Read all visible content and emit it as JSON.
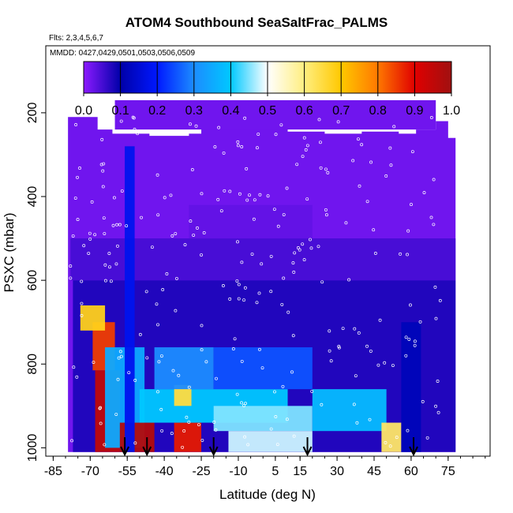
{
  "title": "ATOM4 Southbound SeaSaltFrac_PALMS",
  "flights_label": "Flts: 2,3,4,5,6,7",
  "mmdd_label": "MMDD: 0427,0429,0501,0503,0506,0509",
  "chart_data": {
    "type": "heatmap",
    "title": "ATOM4 Southbound SeaSaltFrac_PALMS",
    "xlabel": "Latitude (deg N)",
    "ylabel": "PSXC (mbar)",
    "x_ticks": [
      "-85",
      "-70",
      "-55",
      "-40",
      "-25",
      "-10",
      "5",
      "15",
      "30",
      "45",
      "60",
      "75"
    ],
    "y_ticks": [
      "200",
      "400",
      "600",
      "800",
      "1000"
    ],
    "xlim": [
      -88,
      92
    ],
    "ylim": [
      1020,
      40
    ],
    "y_reversed": true,
    "colorbar": {
      "min": 0.0,
      "max": 1.0,
      "ticks": [
        "0.0",
        "0.1",
        "0.2",
        "0.3",
        "0.4",
        "0.5",
        "0.6",
        "0.7",
        "0.8",
        "0.9",
        "1.0"
      ],
      "colors": [
        "#8c1aff",
        "#0000a8",
        "#0018ff",
        "#1c8cff",
        "#00c8ff",
        "#ffffff",
        "#ffee80",
        "#ffc800",
        "#ff7800",
        "#e00000",
        "#a01010"
      ]
    },
    "profile_arrows_lat": [
      -56,
      -47,
      -20,
      18,
      61
    ],
    "background_value": 0.02,
    "layers": [
      {
        "p": [
          815,
          1010
        ],
        "lat": [
          -68,
          -58
        ],
        "value": 0.95
      },
      {
        "p": [
          700,
          815
        ],
        "lat": [
          -69,
          -60
        ],
        "value": 0.85
      },
      {
        "p": [
          660,
          720
        ],
        "lat": [
          -74,
          -64
        ],
        "value": 0.68
      },
      {
        "p": [
          760,
          1000
        ],
        "lat": [
          -64,
          -48
        ],
        "value": 0.35
      },
      {
        "p": [
          940,
          1010
        ],
        "lat": [
          -58,
          -44
        ],
        "value": 0.97
      },
      {
        "p": [
          940,
          1010
        ],
        "lat": [
          -36,
          -25
        ],
        "value": 0.88
      },
      {
        "p": [
          860,
          940
        ],
        "lat": [
          -50,
          10
        ],
        "value": 0.4
      },
      {
        "p": [
          850,
          900
        ],
        "lat": [
          -36,
          -29
        ],
        "value": 0.65
      },
      {
        "p": [
          900,
          960
        ],
        "lat": [
          -20,
          20
        ],
        "value": 0.45
      },
      {
        "p": [
          960,
          1010
        ],
        "lat": [
          -14,
          20
        ],
        "value": 0.48
      },
      {
        "p": [
          760,
          860
        ],
        "lat": [
          -44,
          -20
        ],
        "value": 0.3
      },
      {
        "p": [
          760,
          860
        ],
        "lat": [
          -20,
          20
        ],
        "value": 0.25
      },
      {
        "p": [
          860,
          960
        ],
        "lat": [
          20,
          50
        ],
        "value": 0.38
      },
      {
        "p": [
          940,
          1010
        ],
        "lat": [
          48,
          56
        ],
        "value": 0.62
      },
      {
        "p": [
          700,
          1010
        ],
        "lat": [
          56,
          64
        ],
        "value": 0.12
      },
      {
        "p": [
          280,
          1010
        ],
        "lat": [
          -56,
          -52
        ],
        "value": 0.18
      }
    ]
  }
}
